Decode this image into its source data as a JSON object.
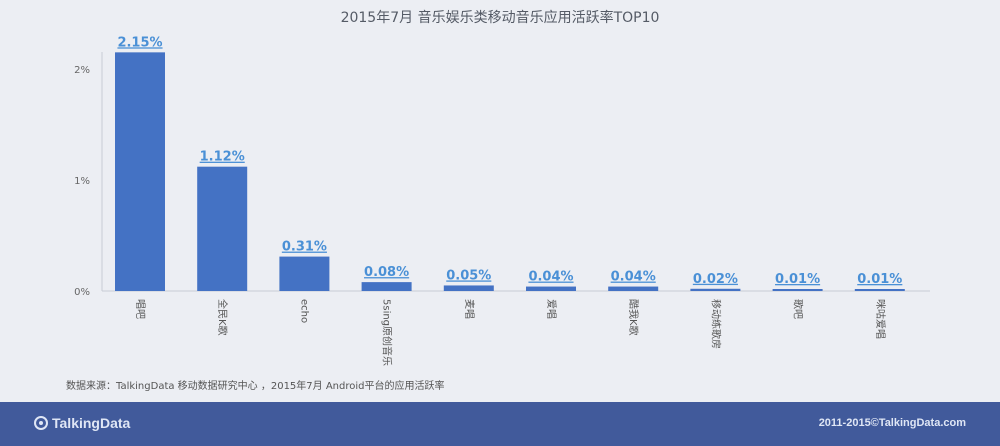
{
  "chart_data": {
    "type": "bar",
    "title": "2015年7月 音乐娱乐类移动音乐应用活跃率TOP10",
    "categories": [
      "唱吧",
      "全民K歌",
      "echo",
      "5sing原创音乐",
      "麦唱",
      "爱唱",
      "酷我K歌",
      "移动练歌房",
      "歌吧",
      "咪咕爱唱"
    ],
    "values": [
      2.15,
      1.12,
      0.31,
      0.08,
      0.05,
      0.04,
      0.04,
      0.02,
      0.01,
      0.01
    ],
    "data_labels": [
      "2.15%",
      "1.12%",
      "0.31%",
      "0.08%",
      "0.05%",
      "0.04%",
      "0.04%",
      "0.02%",
      "0.01%",
      "0.01%"
    ],
    "yticks": [
      "0%",
      "1%",
      "2%"
    ],
    "ylim": [
      0,
      2.2
    ],
    "xlabel": "",
    "ylabel": "",
    "bar_color": "#4472c4",
    "label_color": "#4a90d6",
    "grid": false
  },
  "source_note": "数据来源：TalkingData 移动数据研究中心 ，2015年7月 Android平台的应用活跃率",
  "footer": {
    "logo_text": "TalkingData",
    "copyright": "2011-2015©TalkingData.com",
    "background": "#415a9b"
  }
}
